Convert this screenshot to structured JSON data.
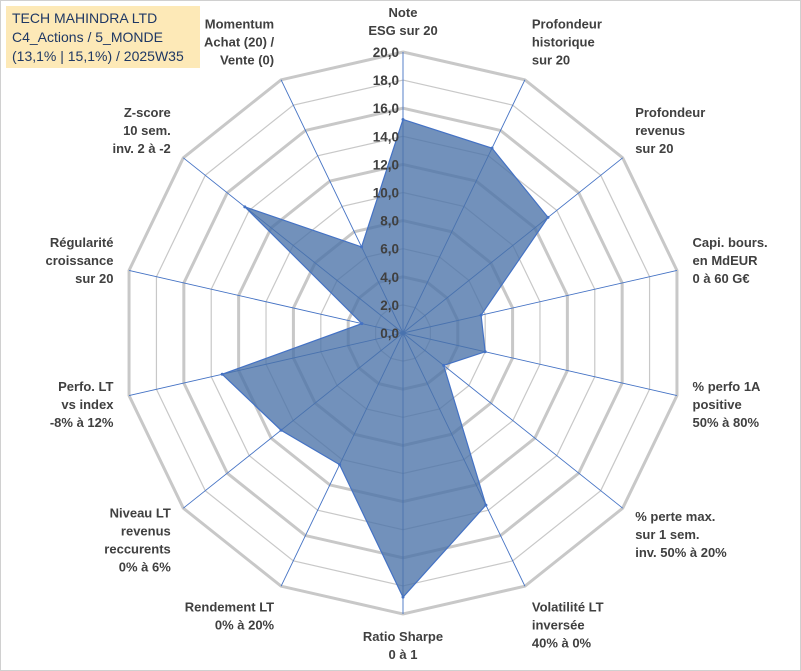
{
  "title": {
    "lines": [
      "TECH MAHINDRA LTD",
      "C4_Actions / 5_MONDE",
      "(13,1% | 15,1%) / 2025W35"
    ]
  },
  "colors": {
    "fill": "#4a72a8",
    "stroke": "#4472c4",
    "grid": "#c8c8c8",
    "spoke": "#4472c4",
    "title_bg": "#fde9b7",
    "title_text": "#1f3864"
  },
  "chart_data": {
    "type": "radar",
    "rmin": 0,
    "rmax": 20,
    "ticks": [
      "0,0",
      "2,0",
      "4,0",
      "6,0",
      "8,0",
      "10,0",
      "12,0",
      "14,0",
      "16,0",
      "18,0",
      "20,0"
    ],
    "axes": [
      [
        "Note",
        "ESG sur 20"
      ],
      [
        "Profondeur",
        "historique",
        "sur 20"
      ],
      [
        "Profondeur",
        "revenus",
        "sur 20"
      ],
      [
        "Capi. bours.",
        "en MdEUR",
        "0 à 60 G€"
      ],
      [
        "% perfo 1A",
        "positive",
        "50% à 80%"
      ],
      [
        "% perte max.",
        "sur 1 sem.",
        "inv. 50% à 20%"
      ],
      [
        "Volatilité LT",
        "inversée",
        "40% à 0%"
      ],
      [
        "Ratio Sharpe",
        "0 à 1"
      ],
      [
        "Rendement LT",
        "0% à 20%"
      ],
      [
        "Niveau LT",
        "revenus",
        "reccurents",
        "0% à 6%"
      ],
      [
        "Perfo. LT",
        "vs index",
        "-8% à 12%"
      ],
      [
        "Régularité",
        "croissance",
        "sur 20"
      ],
      [
        "Z-score",
        "10 sem.",
        "inv. 2 à -2"
      ],
      [
        "Momentum",
        "Achat (20) /",
        "Vente (0)"
      ]
    ],
    "values": [
      15.2,
      14.6,
      13.2,
      5.7,
      6.0,
      3.7,
      13.6,
      18.8,
      10.4,
      11.1,
      13.2,
      3.0,
      14.4,
      6.8
    ],
    "grid": true,
    "legend": "none"
  }
}
